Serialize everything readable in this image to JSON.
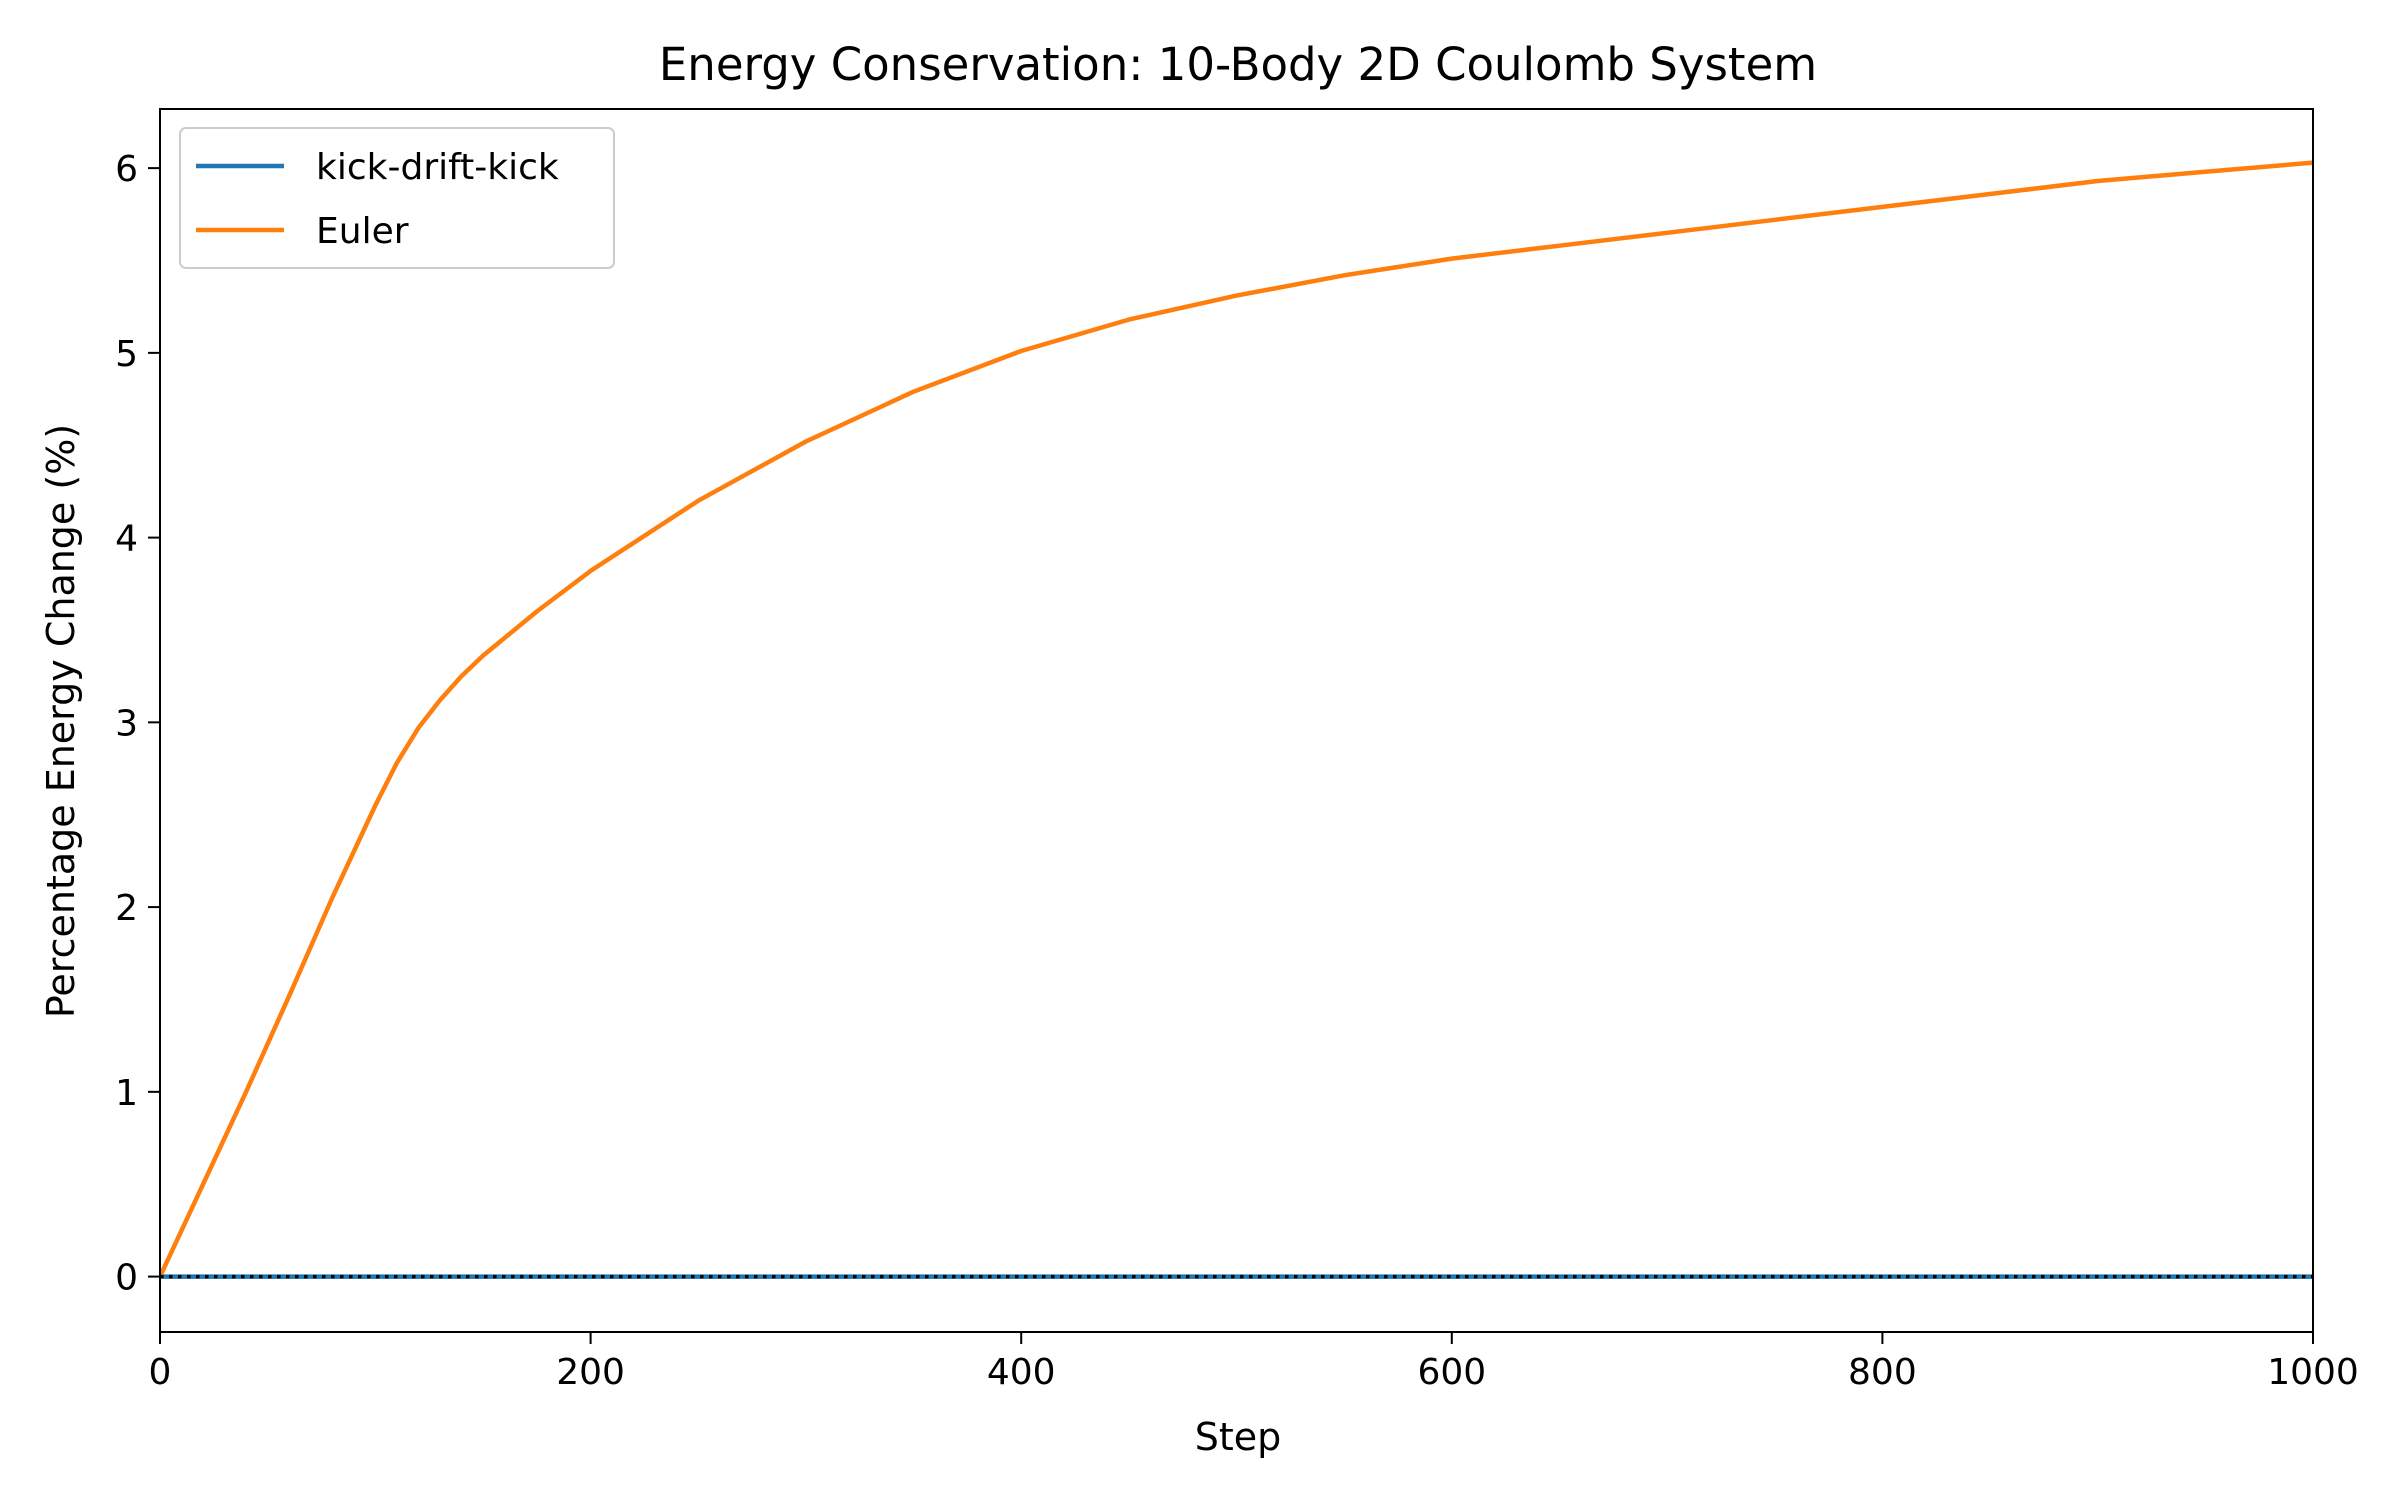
{
  "chart_data": {
    "type": "line",
    "title": "Energy Conservation: 10-Body 2D Coulomb System",
    "xlabel": "Step",
    "ylabel": "Percentage Energy Change (%)",
    "xlim": [
      0,
      1000
    ],
    "ylim": [
      -0.3,
      6.32
    ],
    "xticks": [
      0,
      200,
      400,
      600,
      800,
      1000
    ],
    "yticks": [
      0,
      1,
      2,
      3,
      4,
      5,
      6
    ],
    "grid": false,
    "legend_position": "top-left",
    "reference_line": {
      "y": 0,
      "style": "dotted",
      "color": "#000000"
    },
    "series": [
      {
        "name": "kick-drift-kick",
        "color": "#1f77b4",
        "x": [
          0,
          100,
          200,
          300,
          400,
          500,
          600,
          700,
          800,
          900,
          1000
        ],
        "y": [
          0,
          0,
          0,
          0,
          0,
          0,
          0,
          0,
          0,
          0,
          0
        ]
      },
      {
        "name": "Euler",
        "color": "#ff7f0e",
        "x": [
          0,
          20,
          40,
          60,
          80,
          100,
          110,
          120,
          130,
          140,
          150,
          175,
          200,
          250,
          300,
          350,
          400,
          450,
          500,
          550,
          600,
          650,
          700,
          750,
          800,
          850,
          900,
          950,
          1000
        ],
        "y": [
          0,
          0.5,
          1.0,
          1.52,
          2.05,
          2.55,
          2.78,
          2.97,
          3.12,
          3.25,
          3.36,
          3.6,
          3.82,
          4.2,
          4.52,
          4.79,
          5.01,
          5.18,
          5.31,
          5.42,
          5.51,
          5.58,
          5.65,
          5.72,
          5.79,
          5.86,
          5.93,
          5.98,
          6.03
        ]
      }
    ]
  }
}
